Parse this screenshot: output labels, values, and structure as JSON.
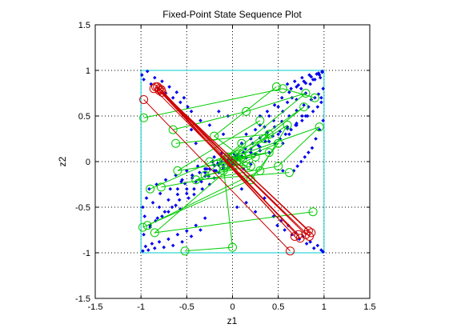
{
  "chart_data": {
    "type": "scatter",
    "title": "Fixed-Point State Sequence Plot",
    "xlabel": "z1",
    "ylabel": "z2",
    "xlim": [
      -1.5,
      1.5
    ],
    "ylim": [
      -1.5,
      1.5
    ],
    "xticks": [
      -1.5,
      -1,
      -0.5,
      0,
      0.5,
      1,
      1.5
    ],
    "yticks": [
      -1.5,
      -1,
      -0.5,
      0,
      0.5,
      1,
      1.5
    ],
    "xtick_labels": [
      "-1.5",
      "-1",
      "-0.5",
      "0",
      "0.5",
      "1",
      "1.5"
    ],
    "ytick_labels": [
      "-1.5",
      "-1",
      "-0.5",
      "0",
      "0.5",
      "1",
      "1.5"
    ],
    "grid": true,
    "grid_style": "dotted",
    "boundary_box": {
      "x": [
        -1,
        1,
        1,
        -1,
        -1
      ],
      "y": [
        -1,
        -1,
        1,
        1,
        -1
      ],
      "color": "#00cccc"
    },
    "colors": {
      "states": "#0000ee",
      "green_traj": "#00cc00",
      "red_traj": "#cc0000",
      "box": "#00cccc"
    },
    "series": [
      {
        "kind": "points",
        "color": "#0000ee",
        "marker": "dot",
        "x": [
          -0.98,
          -0.95,
          -0.92,
          -0.88,
          -0.85,
          -0.8,
          -0.75,
          -0.7,
          -0.65,
          -0.6,
          -0.55,
          -0.5,
          -0.45,
          -0.4,
          -0.35,
          -0.3,
          -0.97,
          -0.9,
          -0.84,
          -0.77,
          -0.7,
          -0.62,
          -0.57,
          -0.48,
          -0.42,
          -0.33,
          -0.25,
          -0.2,
          -0.15,
          -0.1,
          -0.98,
          -0.96,
          -0.94,
          -0.91,
          -0.87,
          -0.83,
          -0.79,
          -0.73,
          -0.68,
          -0.62,
          -0.56,
          -0.5,
          -0.44,
          -0.38,
          -0.3,
          -0.22,
          -0.16,
          -0.1,
          -0.05,
          0.02,
          -0.9,
          -0.82,
          -0.74,
          -0.66,
          -0.58,
          -0.5,
          -0.42,
          -0.34,
          -0.26,
          -0.18,
          -0.1,
          -0.02,
          0.06,
          0.14,
          0.22,
          0.3,
          0.38,
          0.46,
          0.54,
          0.62,
          0.7,
          0.78,
          0.86,
          0.94,
          -0.6,
          -0.52,
          -0.44,
          -0.36,
          -0.28,
          -0.2,
          -0.12,
          -0.04,
          0.04,
          0.12,
          0.2,
          0.28,
          0.36,
          0.44,
          0.52,
          0.6,
          -0.8,
          -0.7,
          -0.6,
          -0.5,
          -0.4,
          -0.3,
          -0.2,
          -0.1,
          0,
          0.1,
          0.2,
          0.3,
          0.4,
          0.5,
          0.6,
          0.7,
          0.8,
          -0.3,
          -0.25,
          -0.2,
          -0.15,
          -0.1,
          -0.05,
          0,
          0.05,
          0.1,
          0.15,
          0.2,
          0.25,
          0.3,
          -0.2,
          -0.12,
          -0.04,
          0.04,
          0.12,
          0.2,
          0.1,
          0.15,
          0.2,
          0.25,
          0.3,
          0.35,
          0.4,
          0.45,
          0.5,
          0.55,
          0.6,
          0.65,
          0.7,
          0.75,
          0.8,
          0.85,
          0.9,
          0.95,
          0.98,
          0.99,
          0.97,
          0.93,
          0.88,
          0.82,
          0.76,
          0.7,
          0.64,
          0.58,
          0.52,
          0.46,
          0.3,
          0.38,
          0.46,
          0.54,
          0.62,
          0.7,
          0.78,
          0.86,
          0.94,
          0.98,
          0.96,
          0.92,
          0.88,
          0.84,
          0.8,
          0.76,
          0.72,
          0.68,
          0.64,
          0.6,
          0.55,
          0.62,
          0.69,
          0.76,
          0.83,
          0.9,
          0.97,
          0.99,
          0.95,
          0.91,
          0.87,
          0.83,
          0.79,
          0.75,
          0.71,
          0.67,
          -0.99,
          -0.97,
          -0.93,
          -0.89,
          -0.85,
          -0.81,
          -0.77,
          -0.73,
          -0.69,
          -0.65,
          -0.61,
          -0.57,
          -0.53,
          -0.49,
          -0.45,
          0.45,
          0.49,
          0.53,
          0.57,
          0.61,
          0.65,
          0.69,
          0.73,
          0.77,
          0.81,
          0.85,
          0.89,
          0.93,
          0.97,
          0.99,
          -0.45,
          -0.35,
          -0.25,
          -0.15,
          -0.05,
          0.05,
          0.15,
          0.25,
          0.35,
          0.45,
          -0.55,
          -0.4,
          -0.1,
          0.1,
          0.4,
          0.55
        ],
        "y": [
          -0.98,
          -0.93,
          -0.97,
          -0.9,
          -0.95,
          -0.88,
          -0.94,
          -0.85,
          -0.92,
          -0.8,
          -0.88,
          -0.76,
          -0.82,
          -0.7,
          -0.75,
          -0.62,
          -0.8,
          -0.72,
          -0.65,
          -0.6,
          -0.55,
          -0.48,
          -0.52,
          -0.4,
          -0.36,
          -0.3,
          -0.25,
          -0.18,
          -0.12,
          -0.08,
          -0.5,
          -0.6,
          -0.4,
          -0.3,
          -0.45,
          -0.25,
          -0.35,
          -0.2,
          -0.3,
          -0.15,
          -0.22,
          -0.1,
          -0.15,
          -0.05,
          -0.08,
          0,
          -0.02,
          0.04,
          0.02,
          0.08,
          -0.7,
          -0.62,
          -0.55,
          -0.5,
          -0.42,
          -0.35,
          -0.3,
          -0.22,
          -0.16,
          -0.1,
          -0.04,
          0.02,
          0.08,
          0.14,
          0.2,
          0.26,
          0.32,
          0.38,
          0.44,
          0.5,
          0.56,
          0.62,
          0.68,
          0.74,
          -0.3,
          -0.24,
          -0.18,
          -0.12,
          -0.08,
          -0.04,
          0,
          0.03,
          0.06,
          0.1,
          0.14,
          0.18,
          0.22,
          0.28,
          0.33,
          0.38,
          -0.5,
          -0.42,
          -0.36,
          -0.3,
          -0.22,
          -0.16,
          -0.1,
          -0.06,
          0,
          0.06,
          0.1,
          0.16,
          0.22,
          0.3,
          0.36,
          0.42,
          0.5,
          -0.12,
          -0.08,
          -0.1,
          -0.04,
          -0.06,
          0,
          -0.02,
          0.02,
          0.06,
          0.04,
          0.1,
          0.08,
          0.12,
          0.05,
          0.09,
          -0.05,
          0.05,
          -0.08,
          -0.03,
          0.2,
          0.3,
          0.25,
          0.35,
          0.4,
          0.38,
          0.5,
          0.45,
          0.6,
          0.55,
          0.65,
          0.7,
          0.68,
          0.8,
          0.75,
          0.85,
          0.9,
          0.95,
          0.98,
          0.8,
          0.7,
          0.6,
          0.55,
          0.5,
          0.45,
          0.4,
          0.35,
          0.3,
          0.25,
          0.2,
          0.5,
          0.55,
          0.62,
          0.7,
          0.76,
          0.82,
          0.88,
          0.93,
          0.97,
          0.99,
          0.92,
          0.96,
          0.9,
          0.95,
          0.86,
          0.92,
          0.84,
          0.88,
          0.8,
          0.85,
          0.2,
          0.3,
          0.4,
          0.5,
          0.6,
          0.7,
          0.65,
          0.45,
          0.35,
          0.25,
          0.15,
          0.1,
          0.05,
          0,
          -0.05,
          -0.1,
          0.95,
          0.9,
          0.99,
          0.85,
          0.92,
          0.8,
          0.88,
          0.75,
          0.82,
          0.7,
          0.76,
          0.65,
          0.7,
          0.6,
          0.55,
          -0.6,
          -0.7,
          -0.65,
          -0.75,
          -0.7,
          -0.8,
          -0.78,
          -0.85,
          -0.82,
          -0.9,
          -0.88,
          -0.95,
          -0.92,
          -0.97,
          -0.99,
          0.35,
          0.45,
          0.4,
          0.55,
          0.5,
          -0.5,
          -0.45,
          -0.55,
          -0.4,
          -0.6,
          -0.2,
          0.2,
          0.3,
          -0.3,
          0.1,
          -0.1
        ]
      },
      {
        "kind": "trajectories",
        "color": "#00cc00",
        "marker": "circle",
        "paths": [
          {
            "x": [
              -0.97,
              0.55,
              0.9
            ],
            "y": [
              0.48,
              0.8,
              0.7
            ]
          },
          {
            "x": [
              -0.62,
              0.4,
              0.0
            ],
            "y": [
              0.2,
              0.3,
              0.0
            ]
          },
          {
            "x": [
              -0.93,
              0.3,
              0.6,
              -0.1
            ],
            "y": [
              -0.7,
              -0.1,
              0.4,
              -0.05
            ]
          },
          {
            "x": [
              -0.52,
              0.0,
              -0.1
            ],
            "y": [
              -0.98,
              -0.94,
              -0.05
            ]
          },
          {
            "x": [
              0.88,
              -0.85,
              0.05
            ],
            "y": [
              -0.55,
              -0.78,
              0.0
            ]
          },
          {
            "x": [
              0.48,
              -0.2,
              0.1
            ],
            "y": [
              0.82,
              0.28,
              0.05
            ]
          },
          {
            "x": [
              -0.9,
              0.35,
              0.78,
              0.0
            ],
            "y": [
              -0.3,
              0.25,
              0.6,
              0.05
            ]
          },
          {
            "x": [
              0.62,
              -0.4,
              0.0
            ],
            "y": [
              -0.12,
              -0.2,
              -0.05
            ]
          },
          {
            "x": [
              -0.98,
              0.2,
              0.5,
              0.0
            ],
            "y": [
              -0.72,
              -0.2,
              0.2,
              0.0
            ]
          },
          {
            "x": [
              -0.65,
              0.15,
              0.8,
              -0.05
            ],
            "y": [
              0.35,
              0.55,
              0.75,
              0.05
            ]
          },
          {
            "x": [
              -0.78,
              0.5,
              0.95,
              0.1
            ],
            "y": [
              -0.28,
              -0.05,
              0.38,
              0.08
            ]
          },
          {
            "x": [
              0.3,
              -0.6,
              0.05
            ],
            "y": [
              0.45,
              -0.1,
              0.0
            ]
          },
          {
            "x": [
              -0.25,
              0.4,
              0.0
            ],
            "y": [
              0.0,
              0.1,
              0.0
            ]
          },
          {
            "x": [
              0.1,
              -0.3,
              0.2
            ],
            "y": [
              0.2,
              -0.15,
              -0.05
            ]
          },
          {
            "x": [
              -0.1,
              0.25,
              -0.05
            ],
            "y": [
              -0.1,
              0.05,
              0.05
            ]
          },
          {
            "x": [
              0.0,
              0.15,
              -0.1
            ],
            "y": [
              0.05,
              -0.05,
              0.0
            ]
          }
        ]
      },
      {
        "kind": "trajectories",
        "color": "#cc0000",
        "marker": "circle",
        "paths": [
          {
            "x": [
              -0.8,
              0.68,
              -0.84,
              0.74,
              -0.78
            ],
            "y": [
              0.8,
              -0.82,
              0.82,
              -0.84,
              0.79
            ]
          },
          {
            "x": [
              -0.97,
              0.63
            ],
            "y": [
              0.68,
              -0.98
            ]
          },
          {
            "x": [
              -0.82,
              0.8,
              -0.8,
              0.84
            ],
            "y": [
              0.82,
              -0.8,
              0.78,
              -0.82
            ]
          },
          {
            "x": [
              0.86,
              -0.77,
              0.83
            ],
            "y": [
              -0.78,
              0.76,
              -0.76
            ]
          },
          {
            "x": [
              -0.86,
              0.72
            ],
            "y": [
              0.8,
              -0.8
            ]
          }
        ]
      }
    ]
  }
}
